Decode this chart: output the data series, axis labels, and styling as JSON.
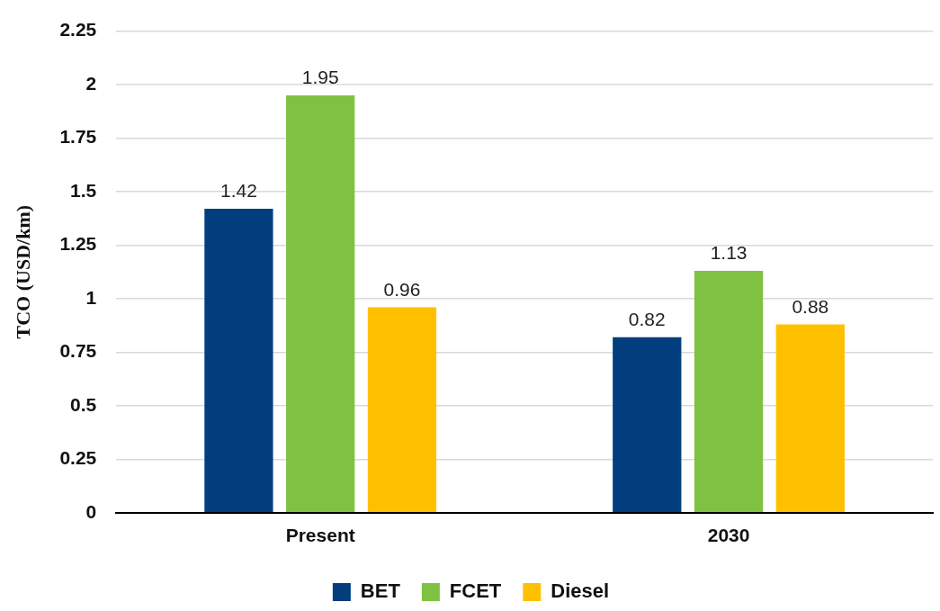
{
  "chart_data": {
    "type": "bar",
    "ylabel": "TCO (USD/km)",
    "categories": [
      "Present",
      "2030"
    ],
    "series": [
      {
        "name": "BET",
        "color": "#023e7d",
        "values": [
          1.42,
          0.82
        ]
      },
      {
        "name": "FCET",
        "color": "#7fc241",
        "values": [
          1.95,
          1.13
        ]
      },
      {
        "name": "Diesel",
        "color": "#ffc000",
        "values": [
          0.96,
          0.88
        ]
      }
    ],
    "ylim": [
      0,
      2.25
    ],
    "yticks": [
      0,
      0.25,
      0.5,
      0.75,
      1,
      1.25,
      1.5,
      1.75,
      2,
      2.25
    ],
    "grid": "y",
    "legend": "bottom",
    "data_labels": true
  }
}
